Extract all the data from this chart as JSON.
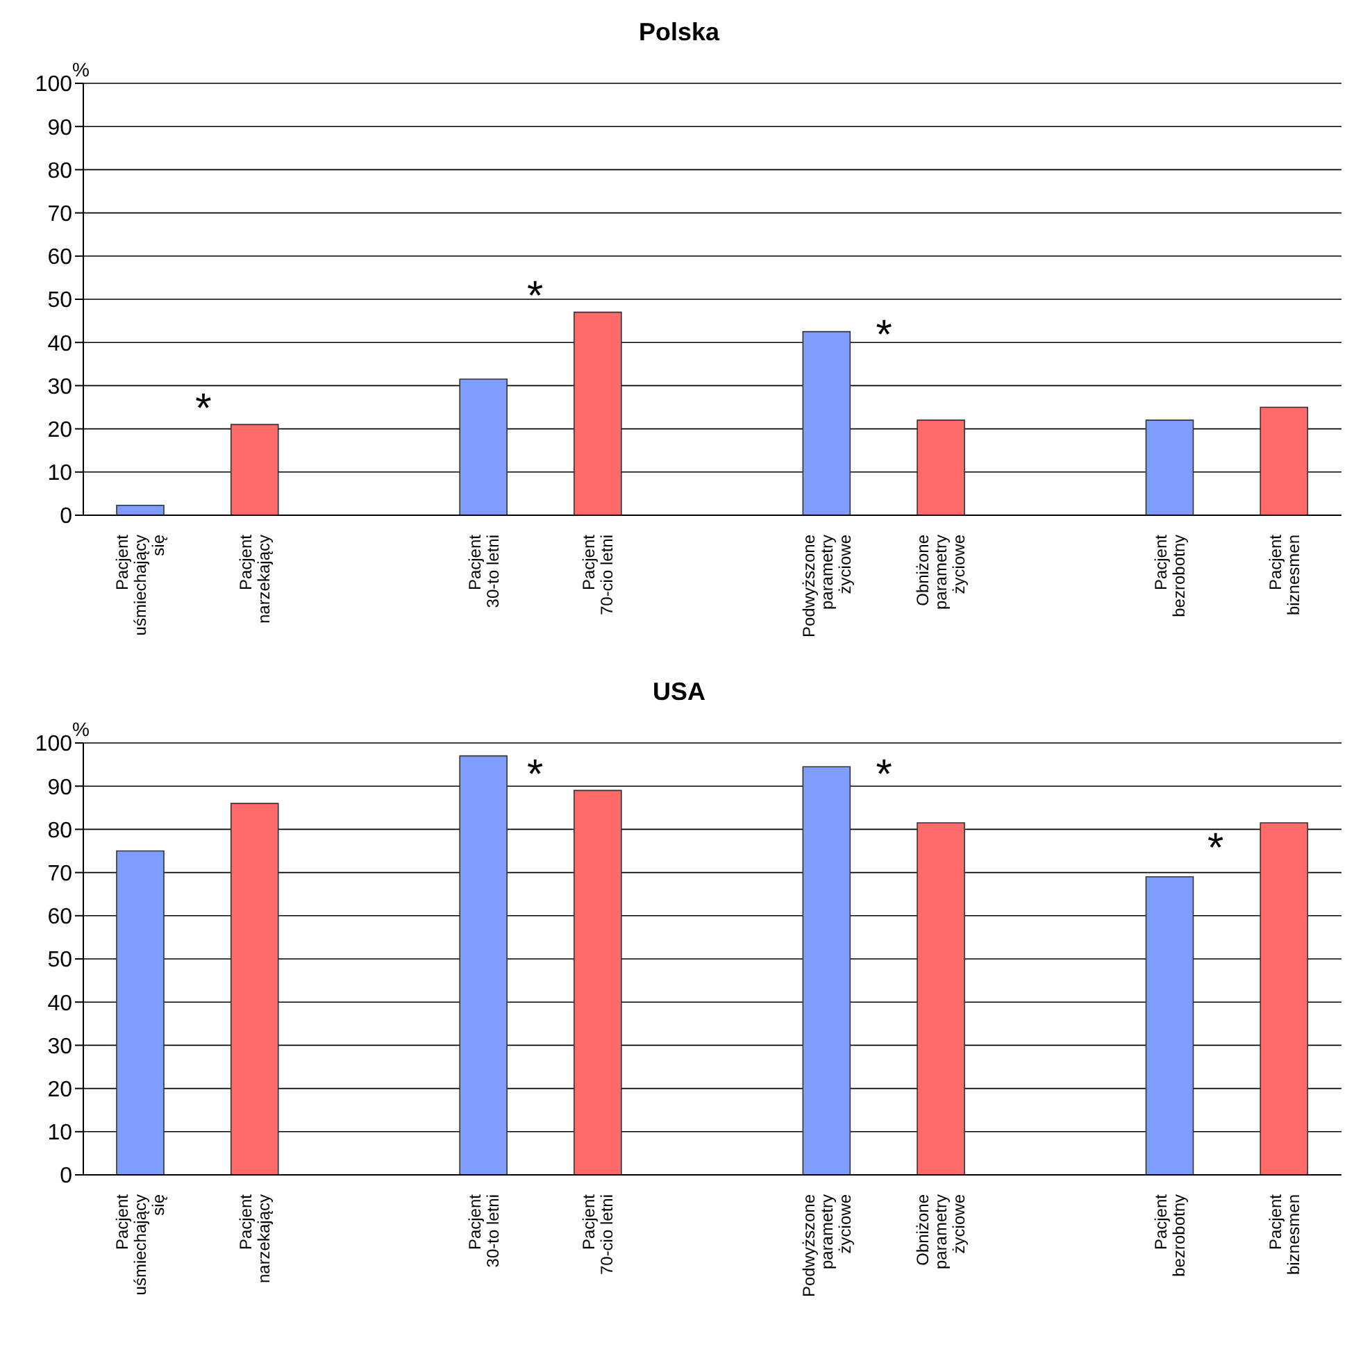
{
  "chart_data": [
    {
      "type": "bar",
      "title": "Polska",
      "ylabel": "%",
      "categories": [
        "Pacjent uśmiechający się",
        "Pacjent narzekający",
        null,
        "Pacjent 30-to letni",
        "Pacjent 70-cio letni",
        null,
        "Podwyższone parametry życiowe",
        "Obniżone parametry życiowe",
        null,
        "Pacjent bezrobotny",
        "Pacjent biznesmen"
      ],
      "values": [
        2.3,
        21,
        null,
        31.5,
        47,
        null,
        42.5,
        22,
        null,
        22,
        25
      ],
      "colors": [
        "#7f9cff",
        "#ff6a6a",
        null,
        "#7f9cff",
        "#ff6a6a",
        null,
        "#7f9cff",
        "#ff6a6a",
        null,
        "#7f9cff",
        "#ff6a6a"
      ],
      "ylim": [
        0,
        100
      ],
      "yticks": [
        0,
        10,
        20,
        30,
        40,
        50,
        60,
        70,
        80,
        90,
        100
      ],
      "grid": "y",
      "legend": false,
      "annotations": [
        "*",
        "*",
        "*"
      ]
    },
    {
      "type": "bar",
      "title": "USA",
      "ylabel": "%",
      "categories": [
        "Pacjent uśmiechający się",
        "Pacjent narzekający",
        null,
        "Pacjent 30-to letni",
        "Pacjent 70-cio letni",
        null,
        "Podwyższone parametry życiowe",
        "Obniżone parametry życiowe",
        null,
        "Pacjent bezrobotny",
        "Pacjent biznesmen"
      ],
      "values": [
        75,
        86,
        null,
        97,
        89,
        null,
        94.5,
        81.5,
        null,
        69,
        81.5
      ],
      "colors": [
        "#7f9cff",
        "#ff6a6a",
        null,
        "#7f9cff",
        "#ff6a6a",
        null,
        "#7f9cff",
        "#ff6a6a",
        null,
        "#7f9cff",
        "#ff6a6a"
      ],
      "ylim": [
        0,
        100
      ],
      "yticks": [
        0,
        10,
        20,
        30,
        40,
        50,
        60,
        70,
        80,
        90,
        100
      ],
      "grid": "y",
      "legend": false,
      "annotations": [
        "*",
        "*",
        "*"
      ]
    }
  ]
}
